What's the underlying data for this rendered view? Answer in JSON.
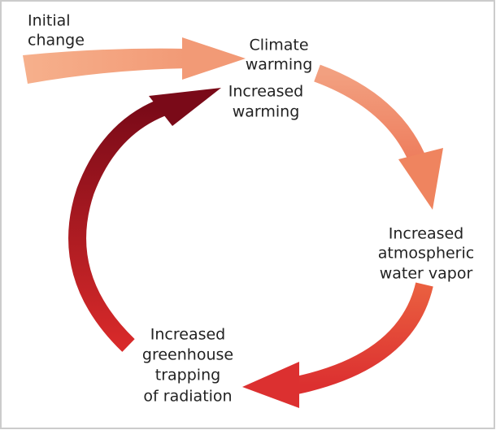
{
  "nodes": [
    {
      "lines": [
        "Initial",
        "change"
      ]
    },
    {
      "lines": [
        "Climate",
        "warming"
      ]
    },
    {
      "lines": [
        "Increased",
        "atmospheric",
        "water vapor"
      ]
    },
    {
      "lines": [
        "Increased",
        "greenhouse",
        "trapping",
        "of radiation"
      ]
    },
    {
      "lines": [
        "Increased",
        "warming"
      ]
    }
  ]
}
